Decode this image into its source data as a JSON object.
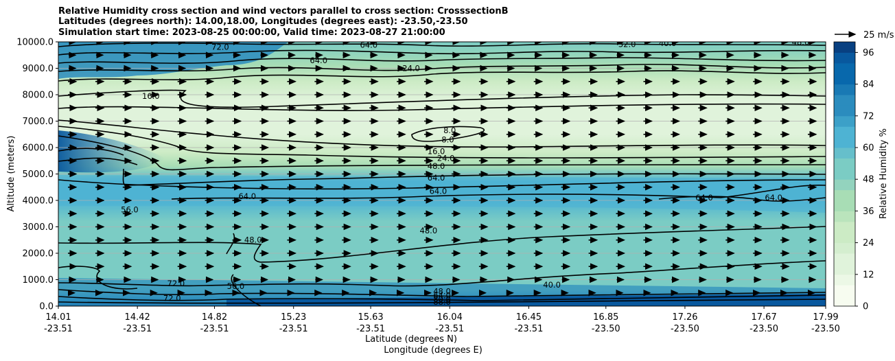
{
  "title_lines": [
    "Relative Humidity cross section and wind vectors parallel to cross section: CrosssectionB",
    "Latitudes (degrees north): 14.00,18.00, Longitudes (degrees east): -23.50,-23.50",
    "Simulation start time: 2023-08-25 00:00:00, Valid time: 2023-08-27 21:00:00"
  ],
  "colors": {
    "very_dry": "#f7fcf0",
    "dry": "#e0f3db",
    "light_green": "#ccebc5",
    "green": "#a8ddb5",
    "teal_light": "#7bccc4",
    "teal": "#4eb3d3",
    "blue": "#2b8cbe",
    "dark_blue": "#08589e",
    "contour": "#000000",
    "grid": "#b0b0b0"
  },
  "chart_data": {
    "type": "heatmap",
    "subtype": "filled contour cross-section with wind vectors",
    "title": "Relative Humidity cross section and wind vectors parallel to cross section: CrosssectionB",
    "xlabel": "Latitude (degrees N)",
    "xlabel2": "Longitude (degrees E)",
    "ylabel": "Altitude (meters)",
    "ylim": [
      0,
      10000
    ],
    "yticks": [
      "0.0",
      "1000.0",
      "2000.0",
      "3000.0",
      "4000.0",
      "5000.0",
      "6000.0",
      "7000.0",
      "8000.0",
      "9000.0",
      "10000.0"
    ],
    "xlim": [
      14.01,
      17.99
    ],
    "xticks": [
      {
        "lat": "14.01",
        "lon": "-23.51"
      },
      {
        "lat": "14.42",
        "lon": "-23.51"
      },
      {
        "lat": "14.82",
        "lon": "-23.51"
      },
      {
        "lat": "15.23",
        "lon": "-23.51"
      },
      {
        "lat": "15.63",
        "lon": "-23.51"
      },
      {
        "lat": "16.04",
        "lon": "-23.51"
      },
      {
        "lat": "16.45",
        "lon": "-23.51"
      },
      {
        "lat": "16.85",
        "lon": "-23.50"
      },
      {
        "lat": "17.26",
        "lon": "-23.50"
      },
      {
        "lat": "17.67",
        "lon": "-23.50"
      },
      {
        "lat": "17.99",
        "lon": "-23.50"
      }
    ],
    "colorbar": {
      "label": "Relative Humidity %",
      "min": 0,
      "max": 100,
      "ticks": [
        "0",
        "12",
        "24",
        "36",
        "48",
        "60",
        "72",
        "84",
        "96"
      ]
    },
    "quiver_key": "25 m/s",
    "rh_profile": [
      {
        "altitude": 0,
        "rh": 95
      },
      {
        "altitude": 500,
        "rh": 65
      },
      {
        "altitude": 1000,
        "rh": 52
      },
      {
        "altitude": 2000,
        "rh": 48
      },
      {
        "altitude": 3000,
        "rh": 55
      },
      {
        "altitude": 4000,
        "rh": 62
      },
      {
        "altitude": 5000,
        "rh": 50
      },
      {
        "altitude": 5500,
        "rh": 30
      },
      {
        "altitude": 6500,
        "rh": 10
      },
      {
        "altitude": 8000,
        "rh": 15
      },
      {
        "altitude": 9000,
        "rh": 35
      },
      {
        "altitude": 10000,
        "rh": 55
      }
    ],
    "contour_labels": [
      {
        "text": "72.0",
        "lat": 14.85,
        "alt": 9700
      },
      {
        "text": "64.0",
        "lat": 15.36,
        "alt": 9200
      },
      {
        "text": "64.0",
        "lat": 15.62,
        "alt": 9780
      },
      {
        "text": "24.0",
        "lat": 15.84,
        "alt": 8900
      },
      {
        "text": "16.0",
        "lat": 14.49,
        "alt": 7850
      },
      {
        "text": "32.0",
        "lat": 16.96,
        "alt": 9800
      },
      {
        "text": "40.0",
        "lat": 17.17,
        "alt": 9850
      },
      {
        "text": "48.0",
        "lat": 17.86,
        "alt": 9880
      },
      {
        "text": "8.0",
        "lat": 16.04,
        "alt": 6550
      },
      {
        "text": "8.0",
        "lat": 16.03,
        "alt": 6200
      },
      {
        "text": "16.0",
        "lat": 15.97,
        "alt": 5750
      },
      {
        "text": "24.0",
        "lat": 16.02,
        "alt": 5500
      },
      {
        "text": "48.0",
        "lat": 15.97,
        "alt": 5200
      },
      {
        "text": "64.0",
        "lat": 15.97,
        "alt": 4750
      },
      {
        "text": "64.0",
        "lat": 15.98,
        "alt": 4250
      },
      {
        "text": "64.0",
        "lat": 14.99,
        "alt": 4050
      },
      {
        "text": "56.0",
        "lat": 14.38,
        "alt": 3550
      },
      {
        "text": "48.0",
        "lat": 15.93,
        "alt": 2750
      },
      {
        "text": "48.0",
        "lat": 15.02,
        "alt": 2400
      },
      {
        "text": "72.0",
        "lat": 14.62,
        "alt": 750
      },
      {
        "text": "72.0",
        "lat": 14.6,
        "alt": 200
      },
      {
        "text": "56.0",
        "lat": 14.93,
        "alt": 650
      },
      {
        "text": "40.0",
        "lat": 16.57,
        "alt": 700
      },
      {
        "text": "64.0",
        "lat": 17.36,
        "alt": 4000
      },
      {
        "text": "64.0",
        "lat": 17.72,
        "alt": 4000
      },
      {
        "text": "48.0",
        "lat": 16.0,
        "alt": 450
      },
      {
        "text": "64.0",
        "lat": 16.0,
        "alt": 300
      },
      {
        "text": "80.0",
        "lat": 16.0,
        "alt": 150
      },
      {
        "text": "88.0",
        "lat": 16.0,
        "alt": 50
      }
    ],
    "wind": {
      "direction": "positive (toward increasing latitude)",
      "typical_speed_ms": 15
    }
  }
}
